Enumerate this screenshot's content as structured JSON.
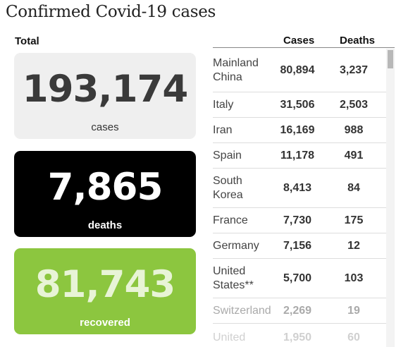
{
  "title": "Confirmed Covid-19 cases",
  "total_label": "Total",
  "cards": {
    "cases": {
      "value": "193,174",
      "label": "cases",
      "color": "#efefef"
    },
    "deaths": {
      "value": "7,865",
      "label": "deaths",
      "color": "#000000"
    },
    "recovered": {
      "value": "81,743",
      "label": "recovered",
      "color": "#8cc63f"
    }
  },
  "table": {
    "headers": {
      "cases": "Cases",
      "deaths": "Deaths"
    },
    "rows": [
      {
        "country_line1": "Mainland",
        "country_line2": "China",
        "cases": "80,894",
        "deaths": "3,237"
      },
      {
        "country_line1": "Italy",
        "country_line2": "",
        "cases": "31,506",
        "deaths": "2,503"
      },
      {
        "country_line1": "Iran",
        "country_line2": "",
        "cases": "16,169",
        "deaths": "988"
      },
      {
        "country_line1": "Spain",
        "country_line2": "",
        "cases": "11,178",
        "deaths": "491"
      },
      {
        "country_line1": "South",
        "country_line2": "Korea",
        "cases": "8,413",
        "deaths": "84"
      },
      {
        "country_line1": "France",
        "country_line2": "",
        "cases": "7,730",
        "deaths": "175"
      },
      {
        "country_line1": "Germany",
        "country_line2": "",
        "cases": "7,156",
        "deaths": "12"
      },
      {
        "country_line1": "United",
        "country_line2": "States**",
        "cases": "5,700",
        "deaths": "103"
      },
      {
        "country_line1": "Switzerland",
        "country_line2": "",
        "cases": "2,269",
        "deaths": "19"
      },
      {
        "country_line1": "United",
        "country_line2": "",
        "cases": "1,950",
        "deaths": "60"
      }
    ]
  }
}
